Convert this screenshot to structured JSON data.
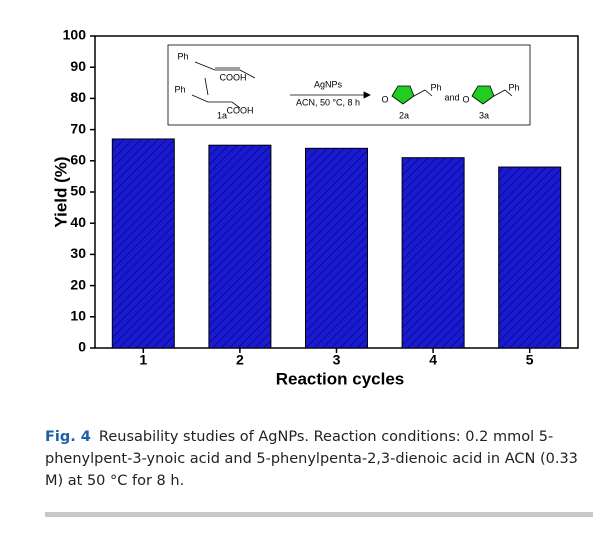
{
  "chart_data": {
    "type": "bar",
    "x_label": "Reaction cycles",
    "y_label": "Yield (%)",
    "categories": [
      "1",
      "2",
      "3",
      "4",
      "5"
    ],
    "values": [
      67,
      65,
      64,
      61,
      58
    ],
    "color": "#1a1ad0",
    "ylim": [
      0,
      100
    ],
    "yticks": [
      0,
      10,
      20,
      30,
      40,
      50,
      60,
      70,
      80,
      90,
      100
    ],
    "grid": false,
    "annotations": [
      "Ph",
      "COOH",
      "Ph",
      "1a",
      "COOH",
      "AgNPs",
      "ACN, 50 °C, 8 h",
      "O",
      "2a",
      "Ph",
      "and",
      "O",
      "3a",
      "Ph"
    ]
  },
  "caption": {
    "label": "Fig. 4",
    "text": "Reusability studies of AgNPs. Reaction conditions: 0.2 mmol 5-phenylpent-3-ynoic acid and 5-phenylpenta-2,3-dienoic acid in ACN (0.33 M) at 50 °C for 8 h."
  }
}
